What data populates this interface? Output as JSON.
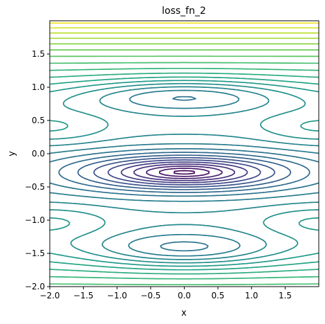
{
  "chart_data": {
    "type": "contour",
    "title": "loss_fn_2",
    "xlabel": "x",
    "ylabel": "y",
    "xlim": [
      -2.0,
      2.0
    ],
    "ylim": [
      -2.0,
      2.0
    ],
    "x_ticks": [
      -2.0,
      -1.5,
      -1.0,
      -0.5,
      0.0,
      0.5,
      1.0,
      1.5
    ],
    "x_tick_labels": [
      "−2.0",
      "−1.5",
      "−1.0",
      "−0.5",
      "0.0",
      "0.5",
      "1.0",
      "1.5"
    ],
    "y_ticks": [
      -2.0,
      -1.5,
      -1.0,
      -0.5,
      0.0,
      0.5,
      1.0,
      1.5
    ],
    "y_tick_labels": [
      "−2.0",
      "−1.5",
      "−1.0",
      "−0.5",
      "0.0",
      "0.5",
      "1.0",
      "1.5"
    ],
    "grid": false,
    "colormap": "viridis",
    "colormap_stops": [
      "#440154",
      "#482878",
      "#3e4989",
      "#31688e",
      "#26828e",
      "#1f9e89",
      "#35b779",
      "#6ece58",
      "#b5de2b",
      "#fde725"
    ],
    "minima": [
      {
        "x": 0.0,
        "y": -0.28
      },
      {
        "x": 0.0,
        "y": 0.88
      },
      {
        "x": 0.0,
        "y": -1.45
      }
    ],
    "saddles": [
      {
        "x": -2.0,
        "y": 0.38
      },
      {
        "x": 2.0,
        "y": 0.38
      },
      {
        "x": -2.0,
        "y": -1.02
      },
      {
        "x": 2.0,
        "y": -1.02
      }
    ],
    "num_levels": 25
  }
}
